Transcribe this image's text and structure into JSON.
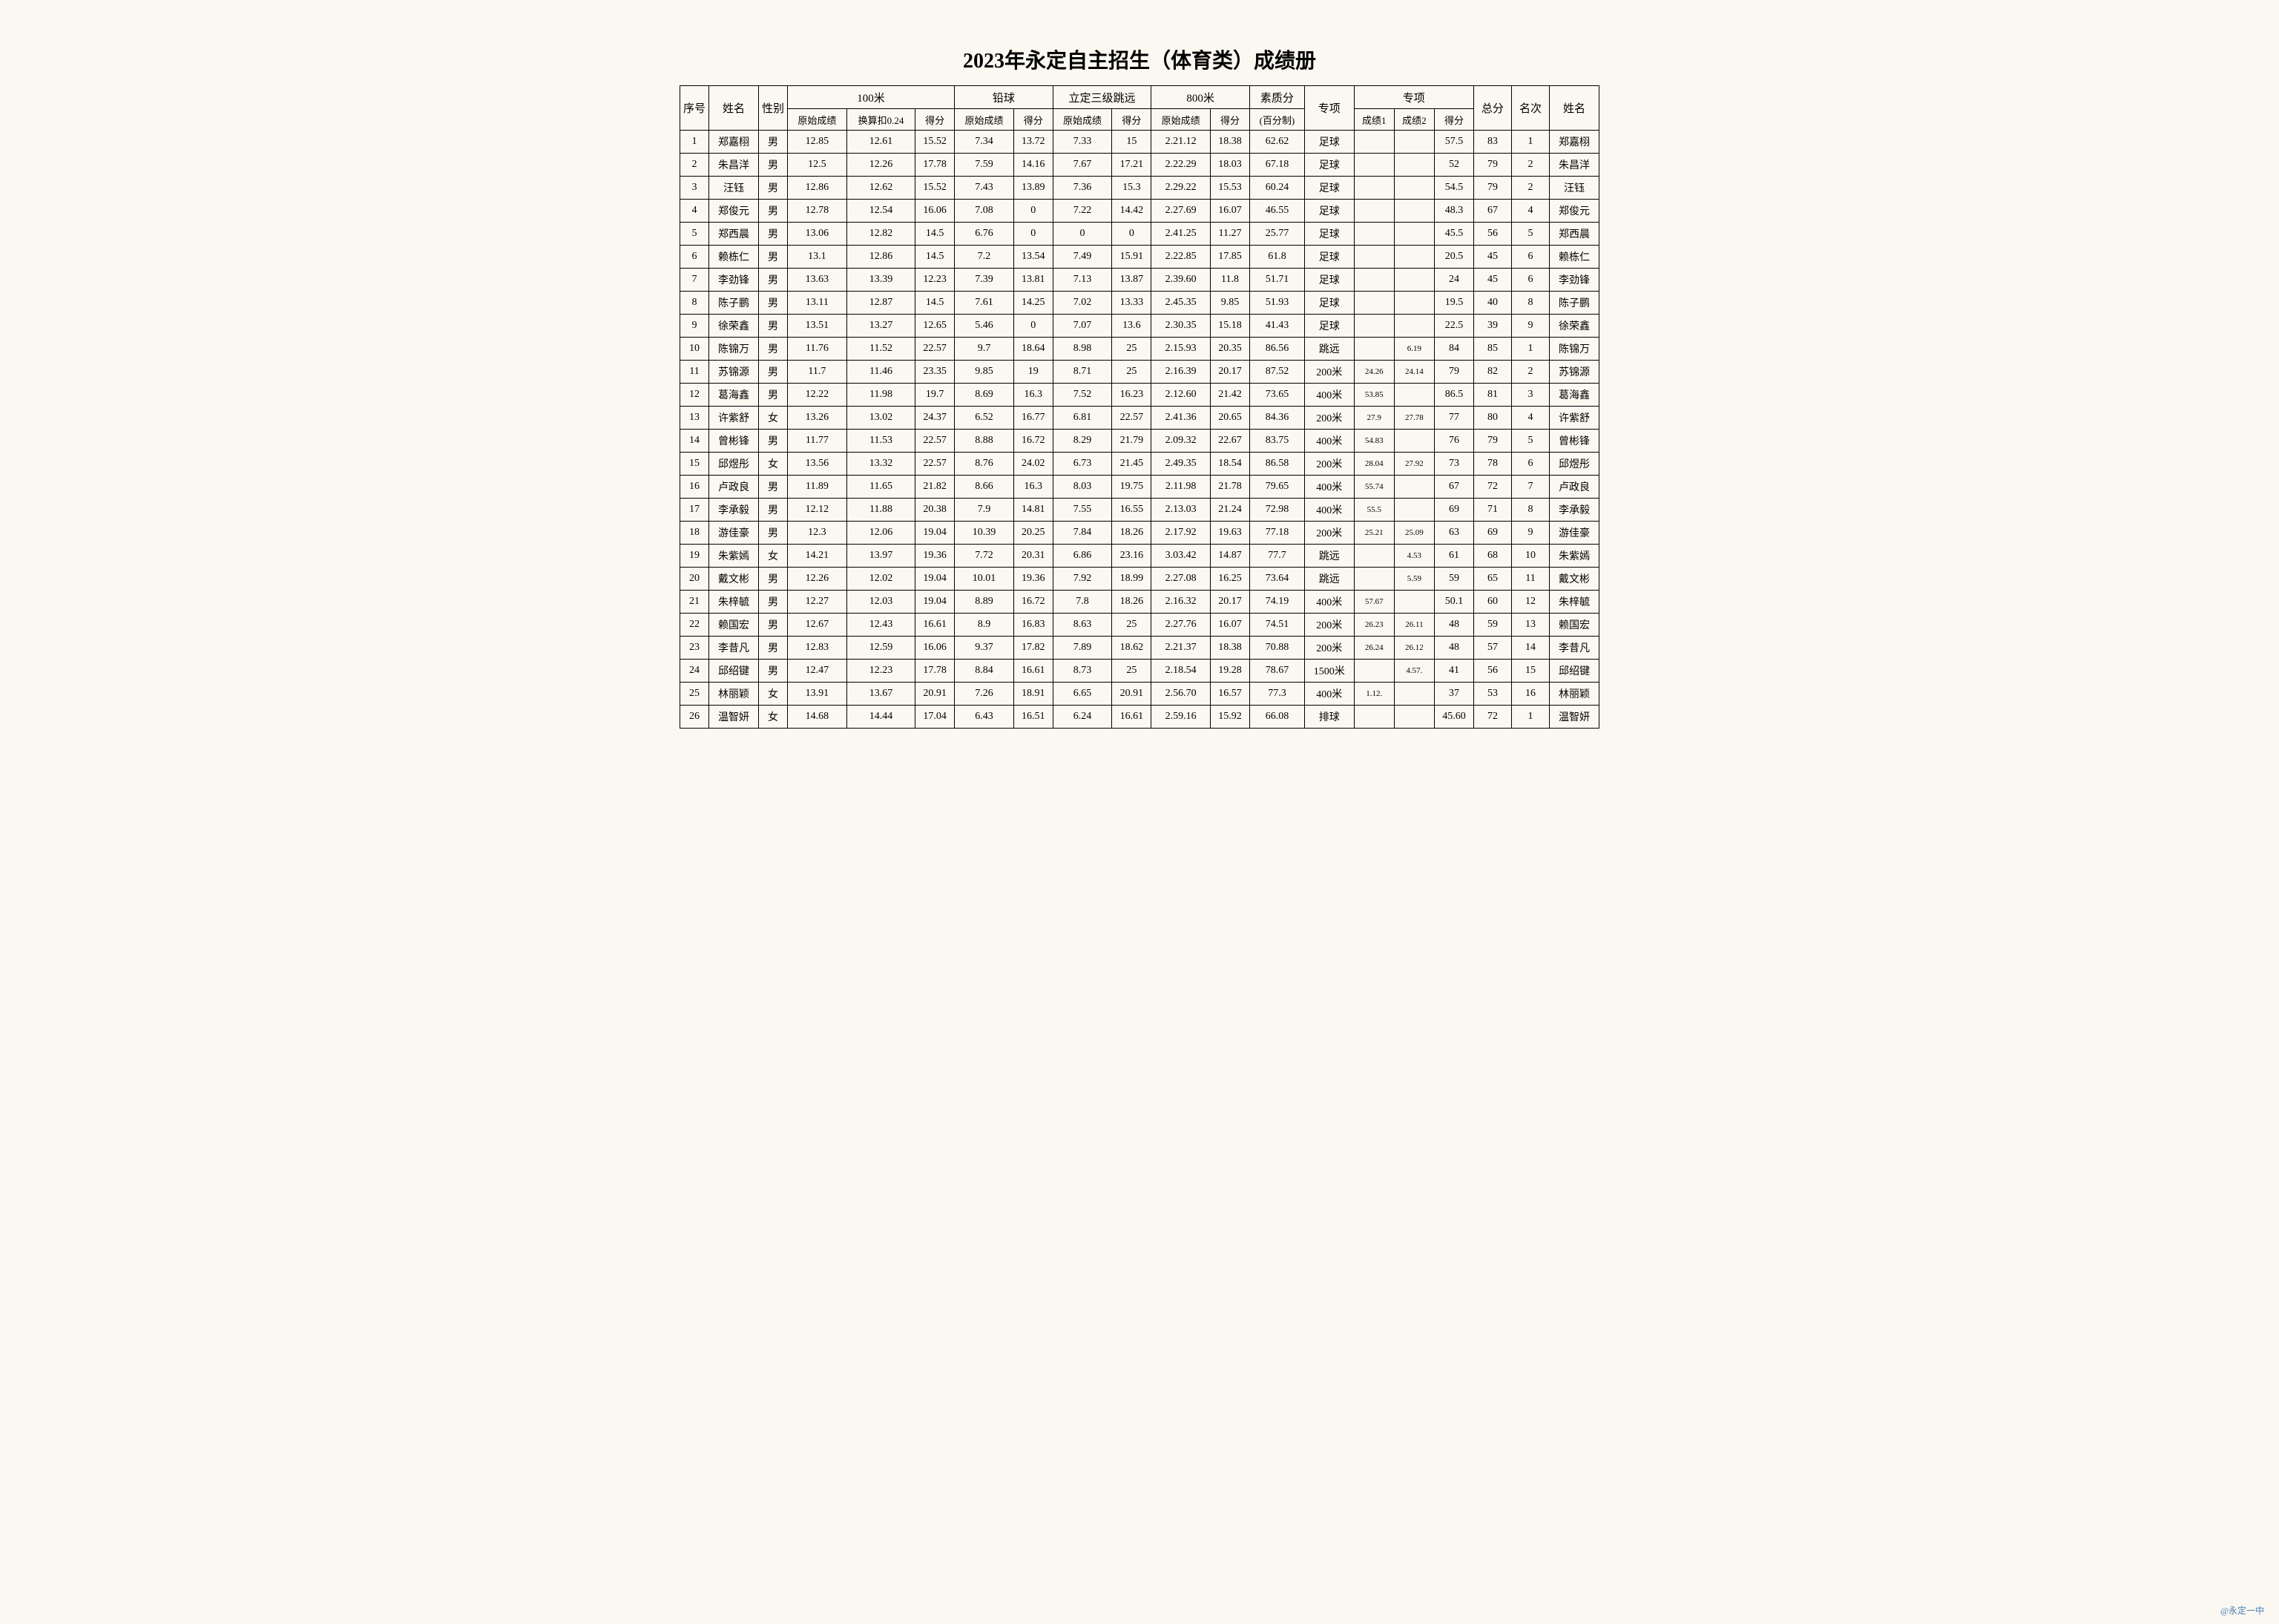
{
  "title": "2023年永定自主招生（体育类）成绩册",
  "watermark": "@永定一中",
  "headers": {
    "seq": "序号",
    "name": "姓名",
    "gender": "性别",
    "sprint100": "100米",
    "shotput": "铅球",
    "triplejump": "立定三级跳远",
    "run800": "800米",
    "quality": "素质分",
    "quality_sub": "(百分制)",
    "special": "专项",
    "special_group": "专项",
    "total": "总分",
    "rank": "名次",
    "name2": "姓名",
    "raw": "原始成绩",
    "conv": "换算扣0.24",
    "score": "得分",
    "sc1": "成绩1",
    "sc2": "成绩2"
  },
  "rows": [
    {
      "seq": 1,
      "name": "郑嘉栩",
      "gender": "男",
      "s100_raw": "12.85",
      "s100_conv": "12.61",
      "s100_sc": "15.52",
      "sp_raw": "7.34",
      "sp_sc": "13.72",
      "tj_raw": "7.33",
      "tj_sc": "15",
      "r800_raw": "2.21.12",
      "r800_sc": "18.38",
      "quality": "62.62",
      "event": "足球",
      "e1": "",
      "e2": "",
      "e_sc": "57.5",
      "total": "83",
      "rank": "1",
      "name2": "郑嘉栩"
    },
    {
      "seq": 2,
      "name": "朱昌洋",
      "gender": "男",
      "s100_raw": "12.5",
      "s100_conv": "12.26",
      "s100_sc": "17.78",
      "sp_raw": "7.59",
      "sp_sc": "14.16",
      "tj_raw": "7.67",
      "tj_sc": "17.21",
      "r800_raw": "2.22.29",
      "r800_sc": "18.03",
      "quality": "67.18",
      "event": "足球",
      "e1": "",
      "e2": "",
      "e_sc": "52",
      "total": "79",
      "rank": "2",
      "name2": "朱昌洋"
    },
    {
      "seq": 3,
      "name": "汪钰",
      "gender": "男",
      "s100_raw": "12.86",
      "s100_conv": "12.62",
      "s100_sc": "15.52",
      "sp_raw": "7.43",
      "sp_sc": "13.89",
      "tj_raw": "7.36",
      "tj_sc": "15.3",
      "r800_raw": "2.29.22",
      "r800_sc": "15.53",
      "quality": "60.24",
      "event": "足球",
      "e1": "",
      "e2": "",
      "e_sc": "54.5",
      "total": "79",
      "rank": "2",
      "name2": "汪钰"
    },
    {
      "seq": 4,
      "name": "郑俊元",
      "gender": "男",
      "s100_raw": "12.78",
      "s100_conv": "12.54",
      "s100_sc": "16.06",
      "sp_raw": "7.08",
      "sp_sc": "0",
      "tj_raw": "7.22",
      "tj_sc": "14.42",
      "r800_raw": "2.27.69",
      "r800_sc": "16.07",
      "quality": "46.55",
      "event": "足球",
      "e1": "",
      "e2": "",
      "e_sc": "48.3",
      "total": "67",
      "rank": "4",
      "name2": "郑俊元"
    },
    {
      "seq": 5,
      "name": "郑西晨",
      "gender": "男",
      "s100_raw": "13.06",
      "s100_conv": "12.82",
      "s100_sc": "14.5",
      "sp_raw": "6.76",
      "sp_sc": "0",
      "tj_raw": "0",
      "tj_sc": "0",
      "r800_raw": "2.41.25",
      "r800_sc": "11.27",
      "quality": "25.77",
      "event": "足球",
      "e1": "",
      "e2": "",
      "e_sc": "45.5",
      "total": "56",
      "rank": "5",
      "name2": "郑西晨"
    },
    {
      "seq": 6,
      "name": "赖栋仁",
      "gender": "男",
      "s100_raw": "13.1",
      "s100_conv": "12.86",
      "s100_sc": "14.5",
      "sp_raw": "7.2",
      "sp_sc": "13.54",
      "tj_raw": "7.49",
      "tj_sc": "15.91",
      "r800_raw": "2.22.85",
      "r800_sc": "17.85",
      "quality": "61.8",
      "event": "足球",
      "e1": "",
      "e2": "",
      "e_sc": "20.5",
      "total": "45",
      "rank": "6",
      "name2": "赖栋仁"
    },
    {
      "seq": 7,
      "name": "李劲锋",
      "gender": "男",
      "s100_raw": "13.63",
      "s100_conv": "13.39",
      "s100_sc": "12.23",
      "sp_raw": "7.39",
      "sp_sc": "13.81",
      "tj_raw": "7.13",
      "tj_sc": "13.87",
      "r800_raw": "2.39.60",
      "r800_sc": "11.8",
      "quality": "51.71",
      "event": "足球",
      "e1": "",
      "e2": "",
      "e_sc": "24",
      "total": "45",
      "rank": "6",
      "name2": "李劲锋"
    },
    {
      "seq": 8,
      "name": "陈子鹏",
      "gender": "男",
      "s100_raw": "13.11",
      "s100_conv": "12.87",
      "s100_sc": "14.5",
      "sp_raw": "7.61",
      "sp_sc": "14.25",
      "tj_raw": "7.02",
      "tj_sc": "13.33",
      "r800_raw": "2.45.35",
      "r800_sc": "9.85",
      "quality": "51.93",
      "event": "足球",
      "e1": "",
      "e2": "",
      "e_sc": "19.5",
      "total": "40",
      "rank": "8",
      "name2": "陈子鹏"
    },
    {
      "seq": 9,
      "name": "徐荣鑫",
      "gender": "男",
      "s100_raw": "13.51",
      "s100_conv": "13.27",
      "s100_sc": "12.65",
      "sp_raw": "5.46",
      "sp_sc": "0",
      "tj_raw": "7.07",
      "tj_sc": "13.6",
      "r800_raw": "2.30.35",
      "r800_sc": "15.18",
      "quality": "41.43",
      "event": "足球",
      "e1": "",
      "e2": "",
      "e_sc": "22.5",
      "total": "39",
      "rank": "9",
      "name2": "徐荣鑫"
    },
    {
      "seq": 10,
      "name": "陈锦万",
      "gender": "男",
      "s100_raw": "11.76",
      "s100_conv": "11.52",
      "s100_sc": "22.57",
      "sp_raw": "9.7",
      "sp_sc": "18.64",
      "tj_raw": "8.98",
      "tj_sc": "25",
      "r800_raw": "2.15.93",
      "r800_sc": "20.35",
      "quality": "86.56",
      "event": "跳远",
      "e1": "",
      "e2": "6.19",
      "e_sc": "84",
      "total": "85",
      "rank": "1",
      "name2": "陈锦万"
    },
    {
      "seq": 11,
      "name": "苏锦源",
      "gender": "男",
      "s100_raw": "11.7",
      "s100_conv": "11.46",
      "s100_sc": "23.35",
      "sp_raw": "9.85",
      "sp_sc": "19",
      "tj_raw": "8.71",
      "tj_sc": "25",
      "r800_raw": "2.16.39",
      "r800_sc": "20.17",
      "quality": "87.52",
      "event": "200米",
      "e1": "24.26",
      "e2": "24.14",
      "e_sc": "79",
      "total": "82",
      "rank": "2",
      "name2": "苏锦源"
    },
    {
      "seq": 12,
      "name": "葛海鑫",
      "gender": "男",
      "s100_raw": "12.22",
      "s100_conv": "11.98",
      "s100_sc": "19.7",
      "sp_raw": "8.69",
      "sp_sc": "16.3",
      "tj_raw": "7.52",
      "tj_sc": "16.23",
      "r800_raw": "2.12.60",
      "r800_sc": "21.42",
      "quality": "73.65",
      "event": "400米",
      "e1": "53.85",
      "e2": "",
      "e_sc": "86.5",
      "total": "81",
      "rank": "3",
      "name2": "葛海鑫"
    },
    {
      "seq": 13,
      "name": "许紫舒",
      "gender": "女",
      "s100_raw": "13.26",
      "s100_conv": "13.02",
      "s100_sc": "24.37",
      "sp_raw": "6.52",
      "sp_sc": "16.77",
      "tj_raw": "6.81",
      "tj_sc": "22.57",
      "r800_raw": "2.41.36",
      "r800_sc": "20.65",
      "quality": "84.36",
      "event": "200米",
      "e1": "27.9",
      "e2": "27.78",
      "e_sc": "77",
      "total": "80",
      "rank": "4",
      "name2": "许紫舒"
    },
    {
      "seq": 14,
      "name": "曾彬锋",
      "gender": "男",
      "s100_raw": "11.77",
      "s100_conv": "11.53",
      "s100_sc": "22.57",
      "sp_raw": "8.88",
      "sp_sc": "16.72",
      "tj_raw": "8.29",
      "tj_sc": "21.79",
      "r800_raw": "2.09.32",
      "r800_sc": "22.67",
      "quality": "83.75",
      "event": "400米",
      "e1": "54.83",
      "e2": "",
      "e_sc": "76",
      "total": "79",
      "rank": "5",
      "name2": "曾彬锋"
    },
    {
      "seq": 15,
      "name": "邱煜彤",
      "gender": "女",
      "s100_raw": "13.56",
      "s100_conv": "13.32",
      "s100_sc": "22.57",
      "sp_raw": "8.76",
      "sp_sc": "24.02",
      "tj_raw": "6.73",
      "tj_sc": "21.45",
      "r800_raw": "2.49.35",
      "r800_sc": "18.54",
      "quality": "86.58",
      "event": "200米",
      "e1": "28.04",
      "e2": "27.92",
      "e_sc": "73",
      "total": "78",
      "rank": "6",
      "name2": "邱煜彤"
    },
    {
      "seq": 16,
      "name": "卢政良",
      "gender": "男",
      "s100_raw": "11.89",
      "s100_conv": "11.65",
      "s100_sc": "21.82",
      "sp_raw": "8.66",
      "sp_sc": "16.3",
      "tj_raw": "8.03",
      "tj_sc": "19.75",
      "r800_raw": "2.11.98",
      "r800_sc": "21.78",
      "quality": "79.65",
      "event": "400米",
      "e1": "55.74",
      "e2": "",
      "e_sc": "67",
      "total": "72",
      "rank": "7",
      "name2": "卢政良"
    },
    {
      "seq": 17,
      "name": "李承毅",
      "gender": "男",
      "s100_raw": "12.12",
      "s100_conv": "11.88",
      "s100_sc": "20.38",
      "sp_raw": "7.9",
      "sp_sc": "14.81",
      "tj_raw": "7.55",
      "tj_sc": "16.55",
      "r800_raw": "2.13.03",
      "r800_sc": "21.24",
      "quality": "72.98",
      "event": "400米",
      "e1": "55.5",
      "e2": "",
      "e_sc": "69",
      "total": "71",
      "rank": "8",
      "name2": "李承毅"
    },
    {
      "seq": 18,
      "name": "游佳豪",
      "gender": "男",
      "s100_raw": "12.3",
      "s100_conv": "12.06",
      "s100_sc": "19.04",
      "sp_raw": "10.39",
      "sp_sc": "20.25",
      "tj_raw": "7.84",
      "tj_sc": "18.26",
      "r800_raw": "2.17.92",
      "r800_sc": "19.63",
      "quality": "77.18",
      "event": "200米",
      "e1": "25.21",
      "e2": "25.09",
      "e_sc": "63",
      "total": "69",
      "rank": "9",
      "name2": "游佳豪"
    },
    {
      "seq": 19,
      "name": "朱紫嫣",
      "gender": "女",
      "s100_raw": "14.21",
      "s100_conv": "13.97",
      "s100_sc": "19.36",
      "sp_raw": "7.72",
      "sp_sc": "20.31",
      "tj_raw": "6.86",
      "tj_sc": "23.16",
      "r800_raw": "3.03.42",
      "r800_sc": "14.87",
      "quality": "77.7",
      "event": "跳远",
      "e1": "",
      "e2": "4.53",
      "e_sc": "61",
      "total": "68",
      "rank": "10",
      "name2": "朱紫嫣"
    },
    {
      "seq": 20,
      "name": "戴文彬",
      "gender": "男",
      "s100_raw": "12.26",
      "s100_conv": "12.02",
      "s100_sc": "19.04",
      "sp_raw": "10.01",
      "sp_sc": "19.36",
      "tj_raw": "7.92",
      "tj_sc": "18.99",
      "r800_raw": "2.27.08",
      "r800_sc": "16.25",
      "quality": "73.64",
      "event": "跳远",
      "e1": "",
      "e2": "5.59",
      "e_sc": "59",
      "total": "65",
      "rank": "11",
      "name2": "戴文彬"
    },
    {
      "seq": 21,
      "name": "朱梓毓",
      "gender": "男",
      "s100_raw": "12.27",
      "s100_conv": "12.03",
      "s100_sc": "19.04",
      "sp_raw": "8.89",
      "sp_sc": "16.72",
      "tj_raw": "7.8",
      "tj_sc": "18.26",
      "r800_raw": "2.16.32",
      "r800_sc": "20.17",
      "quality": "74.19",
      "event": "400米",
      "e1": "57.67",
      "e2": "",
      "e_sc": "50.1",
      "total": "60",
      "rank": "12",
      "name2": "朱梓毓"
    },
    {
      "seq": 22,
      "name": "赖国宏",
      "gender": "男",
      "s100_raw": "12.67",
      "s100_conv": "12.43",
      "s100_sc": "16.61",
      "sp_raw": "8.9",
      "sp_sc": "16.83",
      "tj_raw": "8.63",
      "tj_sc": "25",
      "r800_raw": "2.27.76",
      "r800_sc": "16.07",
      "quality": "74.51",
      "event": "200米",
      "e1": "26.23",
      "e2": "26.11",
      "e_sc": "48",
      "total": "59",
      "rank": "13",
      "name2": "赖国宏"
    },
    {
      "seq": 23,
      "name": "李昔凡",
      "gender": "男",
      "s100_raw": "12.83",
      "s100_conv": "12.59",
      "s100_sc": "16.06",
      "sp_raw": "9.37",
      "sp_sc": "17.82",
      "tj_raw": "7.89",
      "tj_sc": "18.62",
      "r800_raw": "2.21.37",
      "r800_sc": "18.38",
      "quality": "70.88",
      "event": "200米",
      "e1": "26.24",
      "e2": "26.12",
      "e_sc": "48",
      "total": "57",
      "rank": "14",
      "name2": "李昔凡"
    },
    {
      "seq": 24,
      "name": "邱绍键",
      "gender": "男",
      "s100_raw": "12.47",
      "s100_conv": "12.23",
      "s100_sc": "17.78",
      "sp_raw": "8.84",
      "sp_sc": "16.61",
      "tj_raw": "8.73",
      "tj_sc": "25",
      "r800_raw": "2.18.54",
      "r800_sc": "19.28",
      "quality": "78.67",
      "event": "1500米",
      "e1": "",
      "e2": "4.57.",
      "e_sc": "41",
      "total": "56",
      "rank": "15",
      "name2": "邱绍键"
    },
    {
      "seq": 25,
      "name": "林丽颖",
      "gender": "女",
      "s100_raw": "13.91",
      "s100_conv": "13.67",
      "s100_sc": "20.91",
      "sp_raw": "7.26",
      "sp_sc": "18.91",
      "tj_raw": "6.65",
      "tj_sc": "20.91",
      "r800_raw": "2.56.70",
      "r800_sc": "16.57",
      "quality": "77.3",
      "event": "400米",
      "e1": "1.12.",
      "e2": "",
      "e_sc": "37",
      "total": "53",
      "rank": "16",
      "name2": "林丽颖"
    },
    {
      "seq": 26,
      "name": "温智妍",
      "gender": "女",
      "s100_raw": "14.68",
      "s100_conv": "14.44",
      "s100_sc": "17.04",
      "sp_raw": "6.43",
      "sp_sc": "16.51",
      "tj_raw": "6.24",
      "tj_sc": "16.61",
      "r800_raw": "2.59.16",
      "r800_sc": "15.92",
      "quality": "66.08",
      "event": "排球",
      "e1": "",
      "e2": "",
      "e_sc": "45.60",
      "total": "72",
      "rank": "1",
      "name2": "温智妍"
    }
  ]
}
